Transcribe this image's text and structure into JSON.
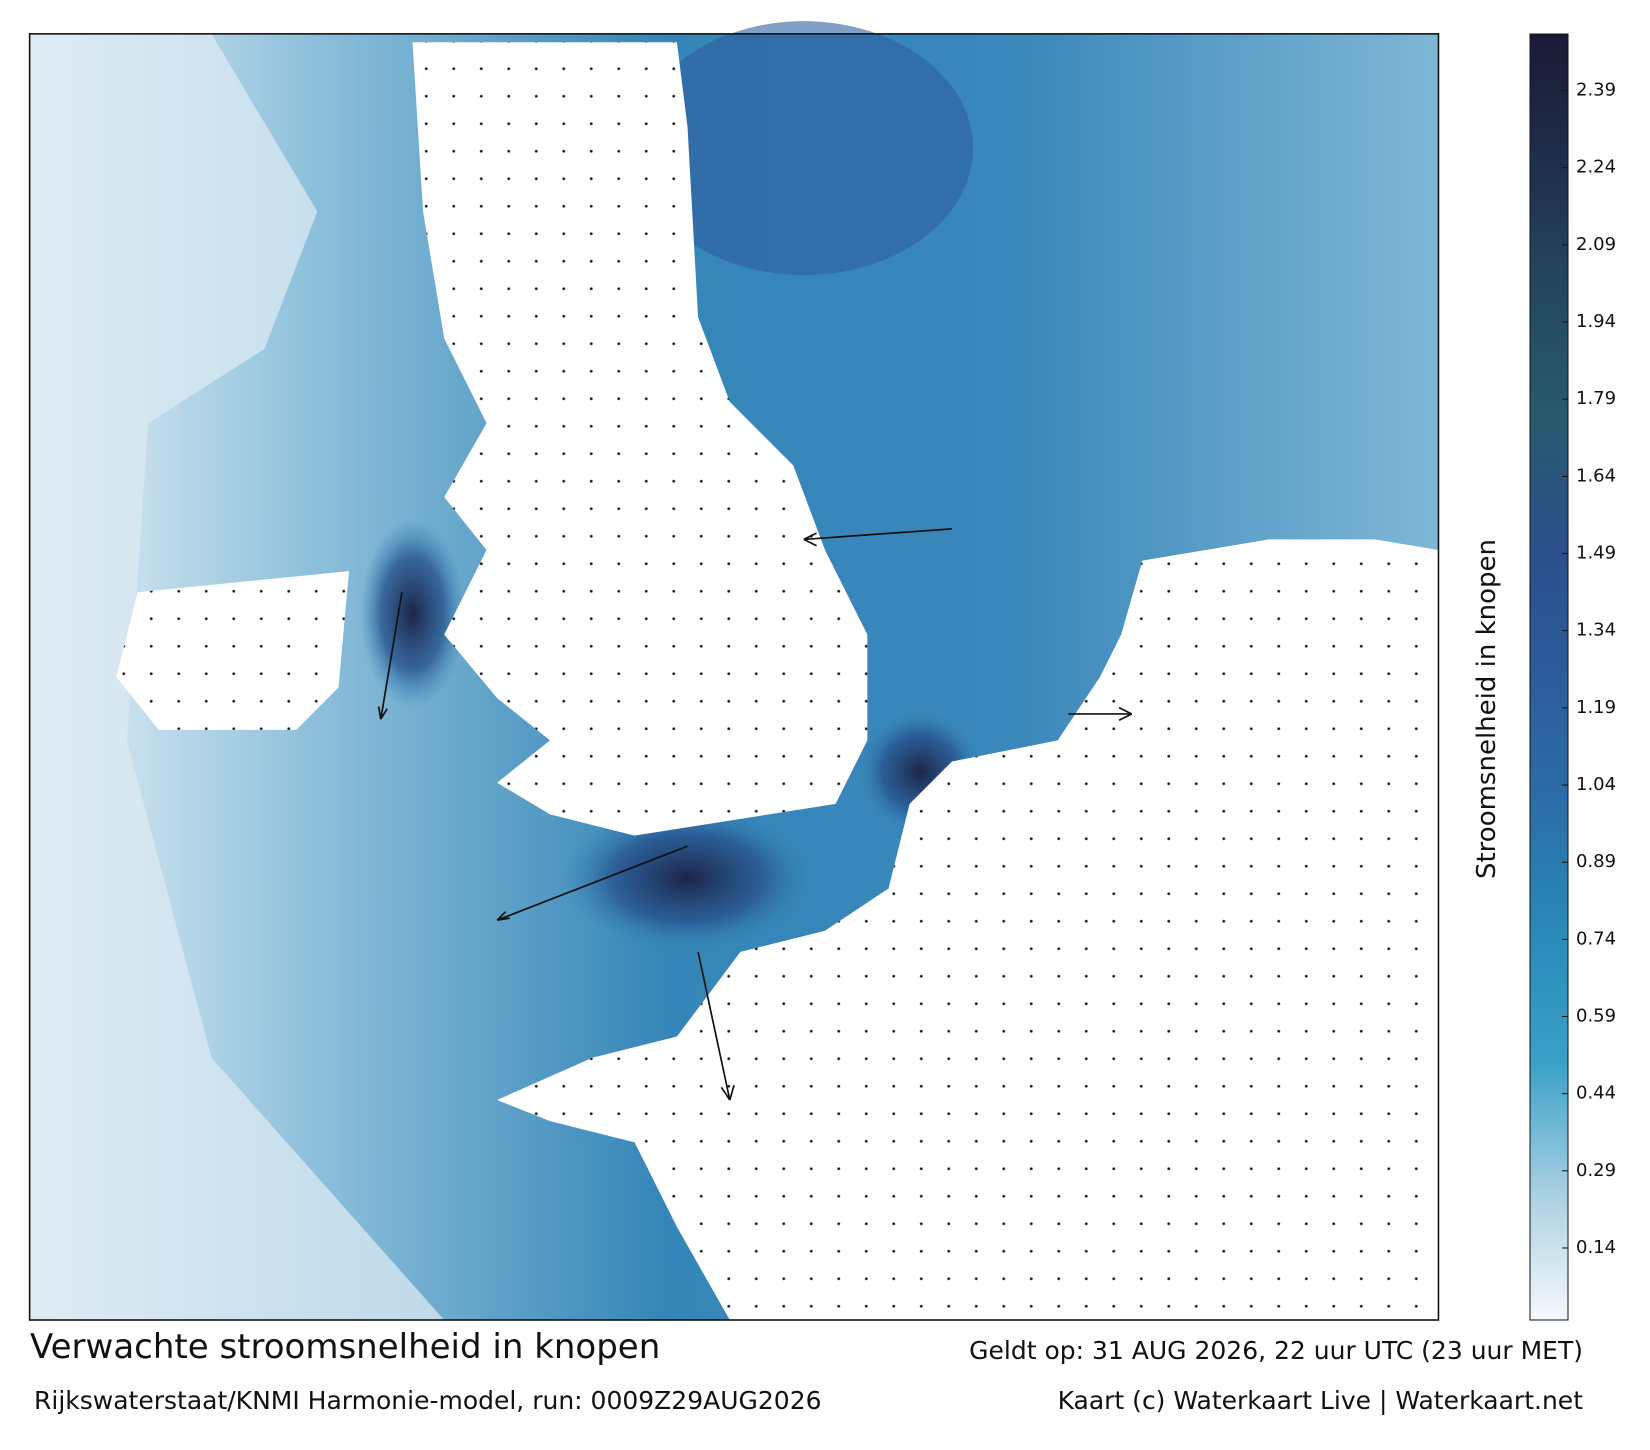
{
  "legend": {
    "label": "Stroomsnelheid in knopen",
    "range": [
      0,
      2.5
    ],
    "ticks": [
      0.14,
      0.29,
      0.44,
      0.59,
      0.74,
      0.89,
      1.04,
      1.19,
      1.34,
      1.49,
      1.64,
      1.79,
      1.94,
      2.09,
      2.24,
      2.39
    ],
    "colors": [
      "#f6f9fb",
      "#a8cfe2",
      "#3aa0c8",
      "#2a8ab8",
      "#2b6ea8",
      "#2c5c9c",
      "#2b4f8a",
      "#285a6e",
      "#244860",
      "#1f2e4c",
      "#1a1a36"
    ]
  },
  "footer": {
    "title": "Verwachte stroomsnelheid in knopen",
    "valid": "Geldt op: 31 AUG 2026, 22 uur UTC (23 uur MET)",
    "model": "Rijkswaterstaat/KNMI Harmonie-model, run: 0009Z29AUG2026",
    "credit": "Kaart (c) Waterkaart Live | Waterkaart.net"
  }
}
